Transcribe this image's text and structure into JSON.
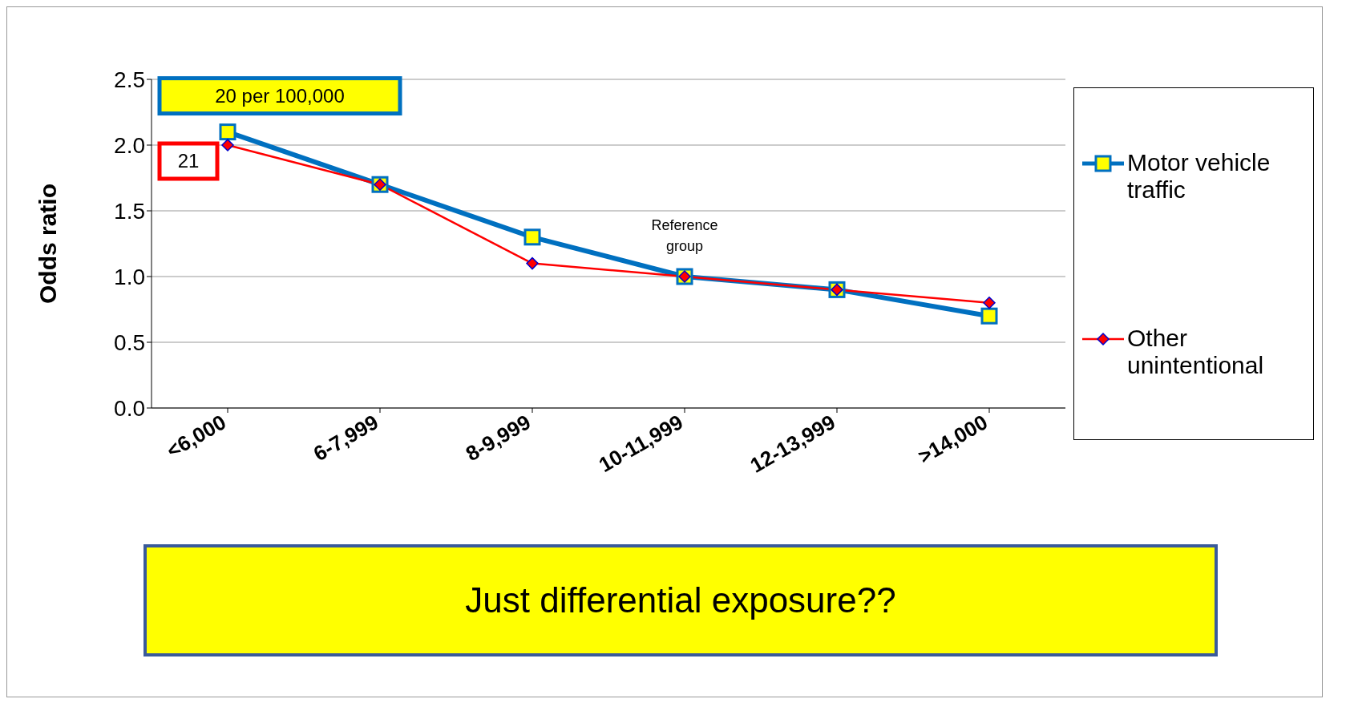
{
  "chart_data": {
    "type": "line",
    "ylabel": "Odds ratio",
    "categories": [
      "<6,000",
      "6-7,999",
      "8-9,999",
      "10-11,999",
      "12-13,999",
      ">14,000"
    ],
    "series": [
      {
        "name": "Motor vehicle traffic",
        "color": "#0070c0",
        "marker": "square",
        "values": [
          2.1,
          1.7,
          1.3,
          1.0,
          0.9,
          0.7
        ]
      },
      {
        "name": "Other unintentional",
        "color": "#ff0000",
        "marker": "diamond",
        "values": [
          2.0,
          1.7,
          1.1,
          1.0,
          0.9,
          0.8
        ]
      }
    ],
    "ylim": [
      0,
      2.5
    ],
    "yticks": [
      {
        "value": 0,
        "label": "0.0"
      },
      {
        "value": 0.5,
        "label": "0.5"
      },
      {
        "value": 1,
        "label": "1.0"
      },
      {
        "value": 1.5,
        "label": "1.5"
      },
      {
        "value": 2,
        "label": "2.0"
      },
      {
        "value": 2.5,
        "label": "2.5"
      }
    ],
    "grid": "y",
    "legend": "right",
    "annotations": [
      {
        "text": "20 per 100,000",
        "x": "<6,000",
        "y": 2.1
      },
      {
        "text": "21",
        "x": "<6,000",
        "y": 2.0
      },
      {
        "text": "Reference group",
        "x": "10-11,999",
        "y": 1.0
      },
      "Just differential exposure??"
    ]
  }
}
